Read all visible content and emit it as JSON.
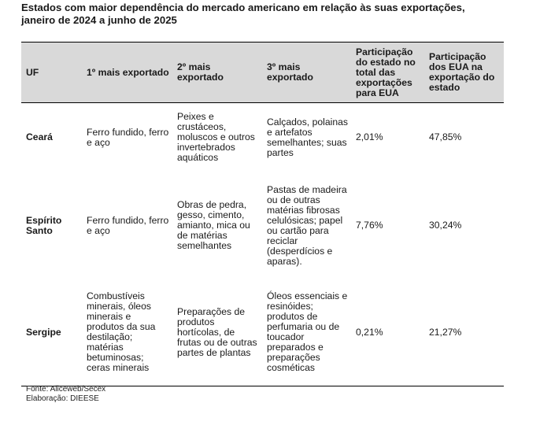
{
  "title": {
    "line1": "Estados com maior dependência do mercado americano em relação às suas exportações,",
    "line2": "janeiro de 2024 a junho de 2025"
  },
  "table": {
    "headers": {
      "uf": "UF",
      "first": "1º mais exportado",
      "second": "2º mais exportado",
      "third": "3º mais exportado",
      "share_state": "Participação do estado no total das exportações para EUA",
      "share_usa": "Participação dos EUA na exportação do estado"
    },
    "rows": [
      {
        "uf": "Ceará",
        "first": "Ferro fundido, ferro e aço",
        "second": "Peixes e crustáceos, moluscos e outros invertebrados aquáticos",
        "third": "Calçados, polainas e artefatos semelhantes; suas partes",
        "share_state": "2,01%",
        "share_usa": "47,85%"
      },
      {
        "uf": "Espírito Santo",
        "first": "Ferro fundido, ferro e aço",
        "second": "Obras de pedra, gesso, cimento, amianto, mica ou de matérias semelhantes",
        "third": "Pastas de madeira ou de outras matérias fibrosas celulósicas; papel ou cartão para reciclar (desperdícios e aparas).",
        "share_state": "7,76%",
        "share_usa": "30,24%"
      },
      {
        "uf": "Sergipe",
        "first": "Combustíveis minerais, óleos minerais e produtos da sua destilação; matérias betuminosas; ceras minerais",
        "second": "Preparações de produtos hortícolas, de frutas ou de outras partes de plantas",
        "third": "Óleos essenciais e resinóides; produtos de perfumaria ou de toucador preparados e preparações cosméticas",
        "share_state": "0,21%",
        "share_usa": "21,27%"
      }
    ]
  },
  "footer": {
    "source": "Fonte: Aliceweb/Secex",
    "elaboration": "Elaboração: DIEESE"
  }
}
